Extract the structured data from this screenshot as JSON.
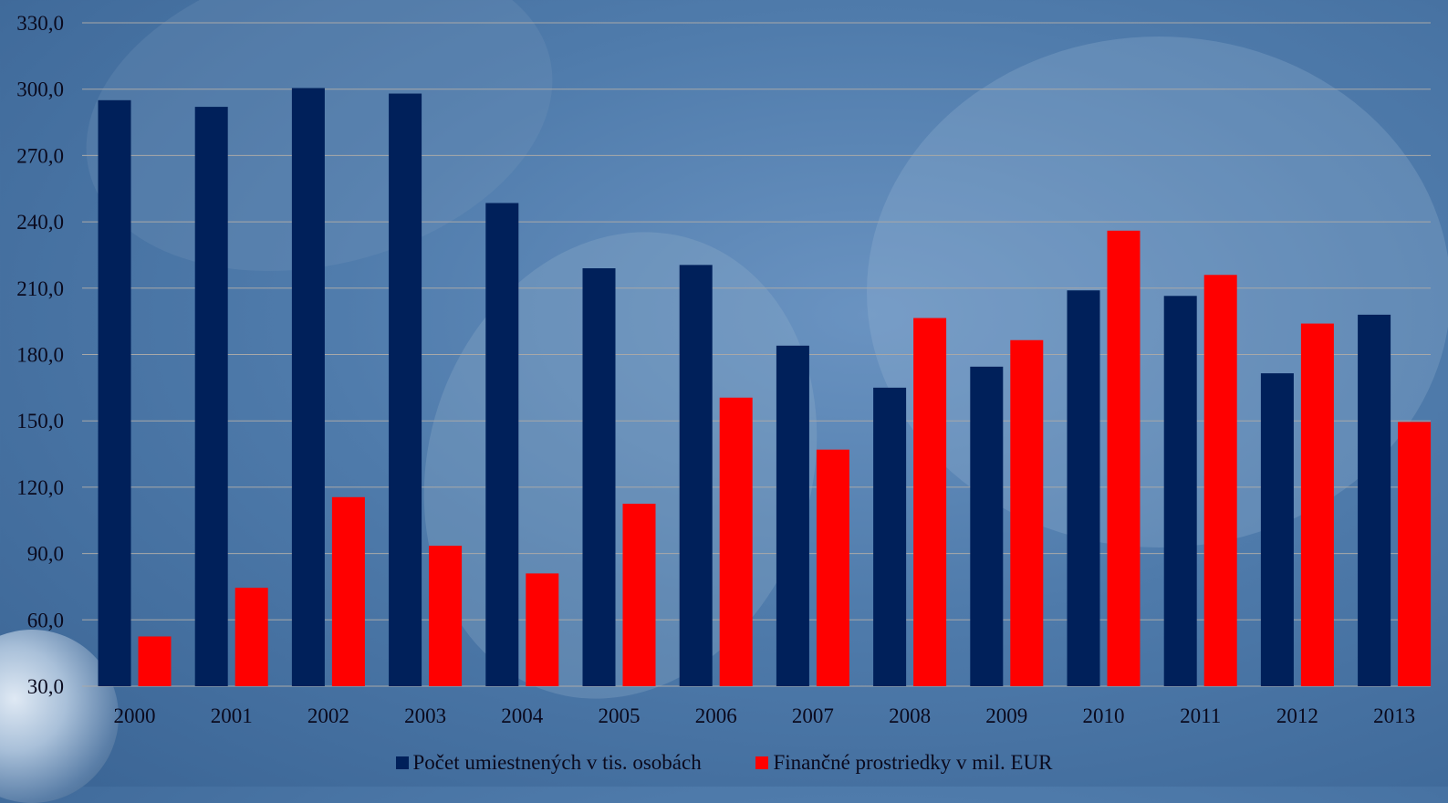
{
  "chart_data": {
    "type": "bar",
    "categories": [
      "2000",
      "2001",
      "2002",
      "2003",
      "2004",
      "2005",
      "2006",
      "2007",
      "2008",
      "2009",
      "2010",
      "2011",
      "2012",
      "2013"
    ],
    "series": [
      {
        "name": "Počet umiestnených v tis. osobách",
        "color": "#00205a",
        "values": [
          295.0,
          292.0,
          300.5,
          298.0,
          248.5,
          219.0,
          220.5,
          184.0,
          165.0,
          174.5,
          209.0,
          206.5,
          171.5,
          198.0
        ]
      },
      {
        "name": "Finančné prostriedky v mil. EUR",
        "color": "#ff0000",
        "values": [
          52.5,
          74.5,
          115.5,
          93.5,
          81.0,
          112.5,
          160.5,
          137.0,
          196.5,
          186.5,
          236.0,
          216.0,
          194.0,
          149.5
        ]
      }
    ],
    "ylim": [
      30,
      330
    ],
    "yticks": [
      "30,0",
      "60,0",
      "90,0",
      "120,0",
      "150,0",
      "180,0",
      "210,0",
      "240,0",
      "270,0",
      "300,0",
      "330,0"
    ],
    "grid": true,
    "legend_position": "bottom"
  },
  "legend": {
    "series_0": "Počet umiestnených v tis. osobách",
    "series_1": "Finančné prostriedky v mil. EUR"
  },
  "colors": {
    "gridline": "#a8a8a8",
    "axis_text": "#0a0a1e"
  }
}
